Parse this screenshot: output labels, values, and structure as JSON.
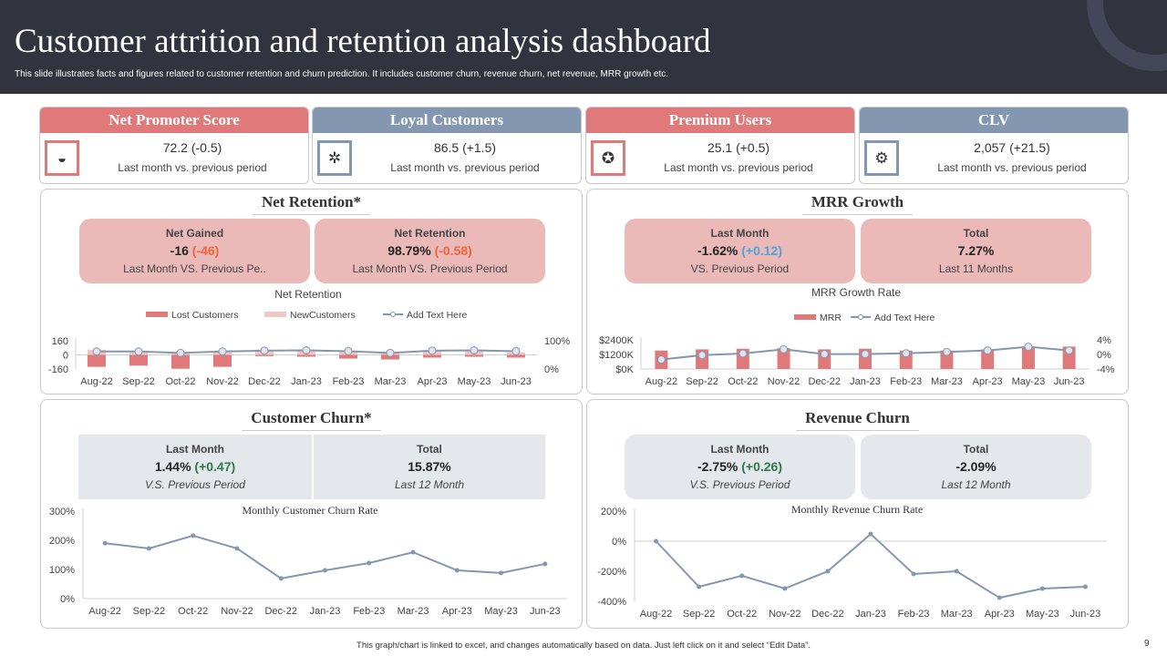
{
  "header": {
    "title": "Customer attrition and retention analysis dashboard",
    "subtitle": "This slide illustrates facts and figures related to customer retention and churn prediction. It includes customer churn, revenue churn, net revenue, MRR  growth etc."
  },
  "colors": {
    "header_bg": "#31333f",
    "red": "#e07a7a",
    "slate": "#8497b0",
    "pink_box": "#ecb9b9",
    "gray_box": "#e4e7eb",
    "negative": "#f2643a",
    "positive": "#2e7a4a",
    "highlight_blue": "#4aa3df",
    "line": "#8497b0"
  },
  "kpis": [
    {
      "title": "Net Promoter Score",
      "value": "72.2 (-0.5)",
      "label": "Last month vs. previous period",
      "icon": "speedometer-icon",
      "color": "#e07a7a"
    },
    {
      "title": "Loyal Customers",
      "value": "86.5 (+1.5)",
      "label": "Last month vs. previous period",
      "icon": "customers-star-icon",
      "color": "#8497b0"
    },
    {
      "title": "Premium Users",
      "value": "25.1 (+0.5)",
      "label": "Last month vs. previous period",
      "icon": "award-ribbon-icon",
      "color": "#e07a7a"
    },
    {
      "title": "CLV",
      "value": "2,057 (+21.5)",
      "label": "Last month vs. previous period",
      "icon": "customer-value-icon",
      "color": "#8497b0"
    }
  ],
  "net_retention": {
    "title": "Net Retention*",
    "box1": {
      "heading": "Net Gained",
      "value": "-16",
      "delta": "(-46)",
      "sub": "Last Month  VS. Previous Pe.."
    },
    "box2": {
      "heading": "Net Retention",
      "value": "98.79%",
      "delta": "(-0.58)",
      "sub": "Last Month  VS. Previous Period"
    }
  },
  "mrr_growth": {
    "title": "MRR Growth",
    "box1": {
      "heading": "Last Month",
      "value": "-1.62%",
      "delta": "(+0.12)",
      "sub": "VS. Previous Period"
    },
    "box2": {
      "heading": "Total",
      "value": "7.27%",
      "sub": "Last 11 Months"
    }
  },
  "customer_churn": {
    "title": "Customer Churn*",
    "box1": {
      "heading": "Last Month",
      "value": "1.44%",
      "delta": "(+0.47)",
      "sub": "V.S. Previous Period"
    },
    "box2": {
      "heading": "Total",
      "value": "15.87%",
      "sub": "Last 12 Month"
    }
  },
  "revenue_churn": {
    "title": "Revenue Churn",
    "box1": {
      "heading": "Last Month",
      "value": "-2.75%",
      "delta": "(+0.26)",
      "sub": "V.S. Previous Period"
    },
    "box2": {
      "heading": "Total",
      "value": "-2.09%",
      "sub": "Last 12 Month"
    }
  },
  "chart_data": [
    {
      "type": "bar",
      "title": "Net Retention",
      "categories": [
        "Aug-22",
        "Sep-22",
        "Oct-22",
        "Nov-22",
        "Dec-22",
        "Jan-23",
        "Feb-23",
        "Mar-23",
        "Apr-23",
        "May-23",
        "Jun-23"
      ],
      "series": [
        {
          "name": "Lost Customers",
          "values": [
            -135,
            -122,
            -157,
            -135,
            -14,
            -21,
            -42,
            -52,
            -31,
            -21,
            -31
          ],
          "color": "#e07a7a"
        },
        {
          "name": "NewCustomers",
          "values": [
            59,
            45,
            24,
            38,
            59,
            59,
            49,
            24,
            52,
            59,
            28
          ],
          "color": "#efc7c7"
        },
        {
          "name": "Add Text Here",
          "kind": "line",
          "axis": "right",
          "values": [
            62,
            62,
            57,
            62,
            65,
            66,
            63,
            57,
            65,
            66,
            63
          ],
          "color": "#8497b0"
        }
      ],
      "ylim": [
        -160,
        160
      ],
      "yticks": [
        "160",
        "0",
        "-160"
      ],
      "y2lim": [
        0,
        100
      ],
      "y2ticks": [
        "100%",
        "0%"
      ],
      "legend": "top",
      "grid": false
    },
    {
      "type": "bar",
      "title": "MRR Growth Rate",
      "categories": [
        "Aug-22",
        "Sep-22",
        "Oct-22",
        "Nov-22",
        "Dec-22",
        "Jan-23",
        "Feb-23",
        "Mar-23",
        "Apr-23",
        "May-23",
        "Jun-23"
      ],
      "series": [
        {
          "name": "MRR",
          "values": [
            1516,
            1617,
            1667,
            1718,
            1617,
            1667,
            1516,
            1516,
            1617,
            1768,
            1844
          ],
          "color": "#e07a7a"
        },
        {
          "name": "Add Text Here",
          "kind": "line",
          "axis": "right",
          "values": [
            -1.4,
            -0.2,
            0.25,
            1.4,
            0.1,
            0.1,
            0.3,
            0.7,
            1.1,
            2.1,
            1.1
          ],
          "color": "#8497b0"
        }
      ],
      "ylim": [
        0,
        2400
      ],
      "yticks": [
        "$2400K",
        "$1200K",
        "$0K"
      ],
      "y2lim": [
        -4,
        4
      ],
      "y2ticks": [
        "4%",
        "0%",
        "-4%"
      ],
      "legend": "top",
      "grid": false
    },
    {
      "type": "line",
      "title": "Monthly Customer Churn Rate",
      "categories": [
        "Aug-22",
        "Sep-22",
        "Oct-22",
        "Nov-22",
        "Dec-22",
        "Jan-23",
        "Feb-23",
        "Mar-23",
        "Apr-23",
        "May-23",
        "Jun-23"
      ],
      "series": [
        {
          "values": [
            190,
            172,
            216,
            172,
            69,
            97,
            122,
            159,
            97,
            88,
            119
          ],
          "color": "#8497b0"
        }
      ],
      "ylim": [
        0,
        300
      ],
      "yticks": [
        "300%",
        "200%",
        "100%",
        "0%"
      ],
      "legend": "none",
      "grid": false
    },
    {
      "type": "line",
      "title": "Monthly Revenue Churn Rate",
      "categories": [
        "Aug-22",
        "Sep-22",
        "Oct-22",
        "Nov-22",
        "Dec-22",
        "Jan-23",
        "Feb-23",
        "Mar-23",
        "Apr-23",
        "May-23",
        "Jun-23"
      ],
      "series": [
        {
          "values": [
            0,
            -303,
            -230,
            -315,
            -200,
            48,
            -218,
            -200,
            -376,
            -315,
            -303
          ],
          "color": "#8497b0"
        }
      ],
      "ylim": [
        -400,
        200
      ],
      "yticks": [
        "200%",
        "0%",
        "-200%",
        "-400%"
      ],
      "legend": "none",
      "grid": "zero-line"
    }
  ],
  "footer": {
    "note": "This graph/chart is linked to excel, and changes automatically based on data. Just left click on it and select “Edit Data”.",
    "page": "9"
  }
}
